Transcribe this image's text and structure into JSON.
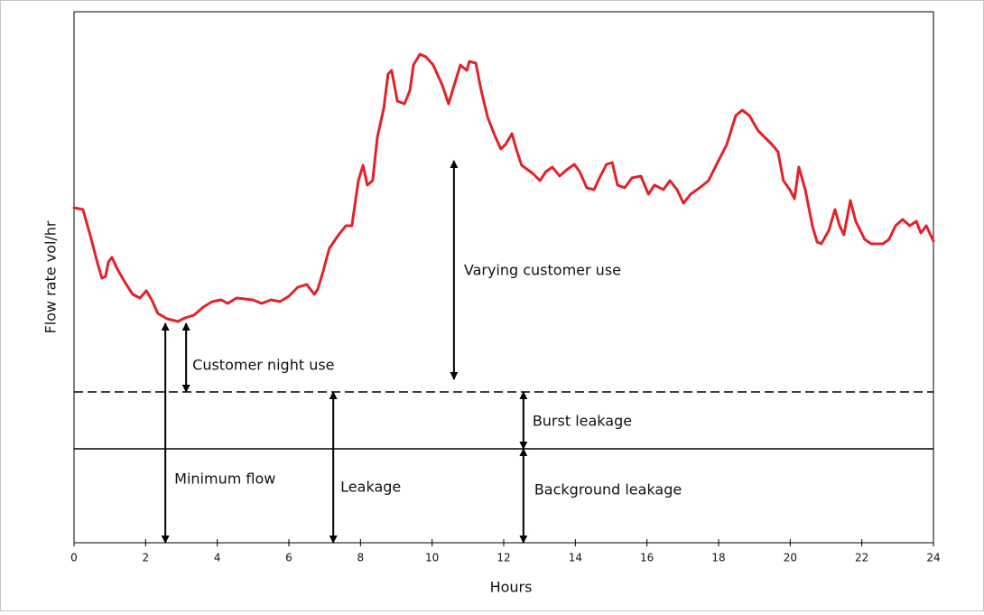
{
  "chart_data": {
    "type": "line",
    "y_label": "Flow rate vol/hr",
    "x_label": "Hours",
    "xlim": [
      0,
      24
    ],
    "xticks": [
      0,
      2,
      4,
      6,
      8,
      10,
      12,
      14,
      16,
      18,
      20,
      22,
      24
    ],
    "ylim": [
      0,
      588
    ],
    "series": [
      {
        "color": "#e32228",
        "x": [
          0,
          0.25,
          0.45,
          0.66,
          0.78,
          0.88,
          0.96,
          1.06,
          1.21,
          1.46,
          1.64,
          1.84,
          2.02,
          2.17,
          2.34,
          2.6,
          2.9,
          3.1,
          3.35,
          3.61,
          3.86,
          4.11,
          4.29,
          4.54,
          4.99,
          5.24,
          5.5,
          5.75,
          6.0,
          6.25,
          6.5,
          6.71,
          6.81,
          6.96,
          7.13,
          7.39,
          7.59,
          7.76,
          7.94,
          8.07,
          8.19,
          8.34,
          8.47,
          8.65,
          8.77,
          8.87,
          9.03,
          9.23,
          9.38,
          9.48,
          9.66,
          9.83,
          10.03,
          10.29,
          10.46,
          10.61,
          10.79,
          10.97,
          11.04,
          11.22,
          11.37,
          11.55,
          11.75,
          11.92,
          12.05,
          12.23,
          12.35,
          12.5,
          12.81,
          13.01,
          13.18,
          13.36,
          13.56,
          13.76,
          13.97,
          14.12,
          14.32,
          14.52,
          14.7,
          14.87,
          15.03,
          15.18,
          15.38,
          15.58,
          15.83,
          16.04,
          16.21,
          16.46,
          16.64,
          16.84,
          17.02,
          17.22,
          17.47,
          17.72,
          17.97,
          18.23,
          18.48,
          18.66,
          18.86,
          19.11,
          19.49,
          19.66,
          19.81,
          19.99,
          20.12,
          20.24,
          20.42,
          20.62,
          20.75,
          20.87,
          21.08,
          21.25,
          21.38,
          21.5,
          21.68,
          21.83,
          22.08,
          22.26,
          22.59,
          22.76,
          22.94,
          23.14,
          23.34,
          23.52,
          23.65,
          23.8,
          24
        ],
        "values": [
          371,
          369,
          341,
          309,
          293,
          295,
          311,
          316,
          303,
          286,
          275,
          271,
          279,
          269,
          254,
          248,
          245,
          249,
          252,
          261,
          267,
          269,
          265,
          271,
          269,
          265,
          269,
          267,
          273,
          283,
          286,
          275,
          281,
          301,
          326,
          341,
          351,
          351,
          401,
          418,
          396,
          401,
          449,
          481,
          519,
          523,
          489,
          486,
          501,
          529,
          541,
          538,
          529,
          506,
          486,
          506,
          529,
          523,
          533,
          531,
          501,
          471,
          451,
          436,
          441,
          453,
          436,
          418,
          409,
          401,
          411,
          416,
          406,
          413,
          419,
          411,
          393,
          391,
          406,
          419,
          421,
          396,
          393,
          404,
          406,
          386,
          396,
          391,
          401,
          391,
          376,
          386,
          393,
          401,
          421,
          441,
          473,
          479,
          473,
          456,
          441,
          433,
          401,
          391,
          381,
          416,
          391,
          351,
          333,
          331,
          346,
          369,
          351,
          341,
          379,
          356,
          336,
          331,
          331,
          336,
          351,
          358,
          351,
          356,
          343,
          351,
          334
        ]
      }
    ],
    "reference_lines": [
      {
        "value": 167,
        "style": "dashed"
      },
      {
        "value": 104,
        "style": "solid"
      }
    ],
    "annotations": [
      {
        "text": "Varying  customer use",
        "x": 10.61,
        "from": 181,
        "to": 423
      },
      {
        "text": "Customer night use",
        "x": 3.13,
        "from": 167,
        "to": 243
      },
      {
        "text": "Minimum flow",
        "x": 2.55,
        "from": 0,
        "to": 243
      },
      {
        "text": "Leakage",
        "x": 7.24,
        "from": 0,
        "to": 167
      },
      {
        "text": "Burst leakage",
        "x": 12.55,
        "from": 104,
        "to": 167
      },
      {
        "text": "Background leakage",
        "x": 12.55,
        "from": 0,
        "to": 104
      }
    ]
  }
}
